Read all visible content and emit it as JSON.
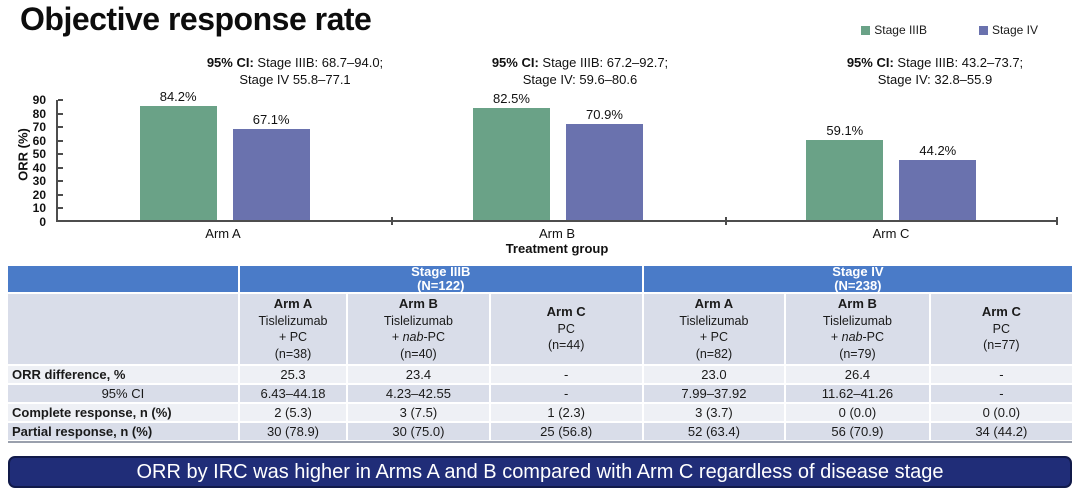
{
  "header": {
    "title": "Objective response rate"
  },
  "legend": [
    {
      "label": "Stage IIIB",
      "color": "#6aa287"
    },
    {
      "label": "Stage IV",
      "color": "#6a72ae"
    }
  ],
  "annotations": [
    {
      "prefix": "95% CI:",
      "line1": "Stage IIIB: 68.7–94.0;",
      "line2": "Stage IV 55.8–77.1"
    },
    {
      "prefix": "95% CI:",
      "line1": "Stage IIIB: 67.2–92.7;",
      "line2": "Stage IV: 59.6–80.6"
    },
    {
      "prefix": "95% CI:",
      "line1": "Stage IIIB: 43.2–73.7;",
      "line2": "Stage IV: 32.8–55.9"
    }
  ],
  "chart_data": {
    "type": "bar",
    "categories": [
      "Arm A",
      "Arm B",
      "Arm C"
    ],
    "series": [
      {
        "name": "Stage IIIB",
        "color": "#6aa287",
        "values": [
          84.2,
          82.5,
          59.1
        ]
      },
      {
        "name": "Stage IV",
        "color": "#6a72ae",
        "values": [
          67.1,
          70.9,
          44.2
        ]
      }
    ],
    "value_label_suffix": "%",
    "title": "Objective response rate",
    "xlabel": "Treatment group",
    "ylabel": "ORR (%)",
    "ylim": [
      0,
      90
    ],
    "yticks": [
      0,
      10,
      20,
      30,
      40,
      50,
      60,
      70,
      80,
      90
    ],
    "grid": false,
    "legend_position": "top-right"
  },
  "table": {
    "group_headers": [
      {
        "label": "Stage IIIB",
        "sub": "(N=122)"
      },
      {
        "label": "Stage IV",
        "sub": "(N=238)"
      }
    ],
    "arm_columns": [
      {
        "lines": [
          "Arm A",
          "Tislelizumab",
          "+ PC",
          "(n=38)"
        ]
      },
      {
        "lines": [
          "Arm B",
          "Tislelizumab",
          "+ *nab*-PC",
          "(n=40)"
        ]
      },
      {
        "lines": [
          "Arm C",
          "PC",
          "(n=44)"
        ]
      },
      {
        "lines": [
          "Arm A",
          "Tislelizumab",
          "+ PC",
          "(n=82)"
        ]
      },
      {
        "lines": [
          "Arm B",
          "Tislelizumab",
          "+ *nab*-PC",
          "(n=79)"
        ]
      },
      {
        "lines": [
          "Arm C",
          "PC",
          "(n=77)"
        ]
      }
    ],
    "rows": [
      {
        "label": "ORR difference, %",
        "bold": true,
        "center": false,
        "values": [
          "25.3",
          "23.4",
          "-",
          "23.0",
          "26.4",
          "-"
        ]
      },
      {
        "label": "95% CI",
        "bold": false,
        "center": true,
        "values": [
          "6.43–44.18",
          "4.23–42.55",
          "-",
          "7.99–37.92",
          "11.62–41.26",
          "-"
        ]
      },
      {
        "label": "Complete response, n (%)",
        "bold": true,
        "center": false,
        "values": [
          "2 (5.3)",
          "3 (7.5)",
          "1 (2.3)",
          "3 (3.7)",
          "0 (0.0)",
          "0 (0.0)"
        ]
      },
      {
        "label": "Partial response, n (%)",
        "bold": true,
        "center": false,
        "values": [
          "30 (78.9)",
          "30 (75.0)",
          "25 (56.8)",
          "52 (63.4)",
          "56 (70.9)",
          "34 (44.2)"
        ]
      }
    ]
  },
  "banner": {
    "text": "ORR by IRC was higher in Arms A and B compared with Arm C regardless of disease stage"
  },
  "colors": {
    "stage_iiib_bar": "#6aa287",
    "stage_iv_bar": "#6a72ae",
    "table_header_blue": "#4a7bc8",
    "row_stripe_light": "#eef0f5",
    "row_stripe_dark": "#d9dde9",
    "banner_navy": "#202d78",
    "axis_gray": "#4d4d4d"
  }
}
